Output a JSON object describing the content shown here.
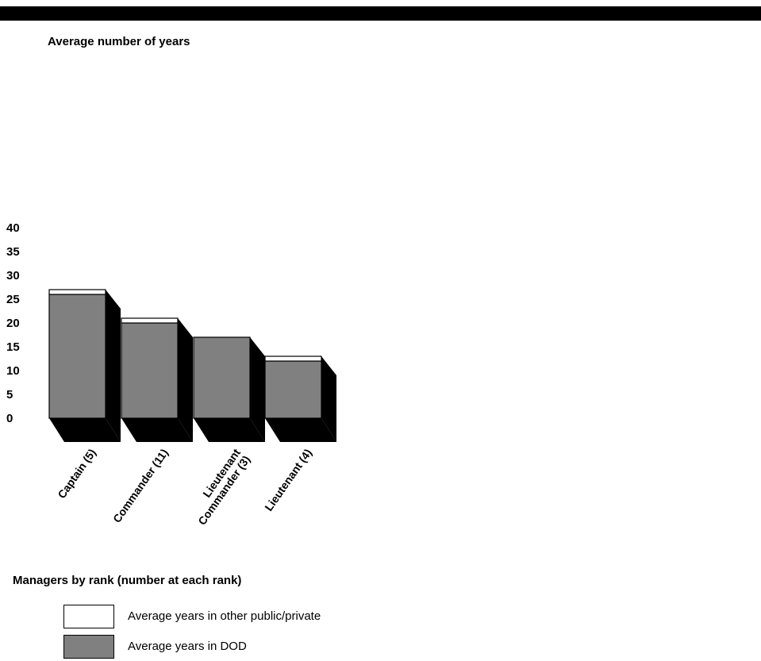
{
  "chart_data": {
    "type": "bar",
    "stacked": true,
    "ylabel": "Average number of years",
    "xlabel": "Managers by rank (number at each rank)",
    "ylim": [
      0,
      40
    ],
    "yticks": [
      0,
      5,
      10,
      15,
      20,
      25,
      30,
      35,
      40
    ],
    "categories": [
      [
        "Captain (5)"
      ],
      [
        "Commander (11)"
      ],
      [
        "Lieutenant",
        "Commander (3)"
      ],
      [
        "Lieutenant (4)"
      ]
    ],
    "series": [
      {
        "name": "Average years in DOD",
        "color": "#808080",
        "values": [
          26,
          20,
          17,
          12
        ]
      },
      {
        "name": "Average years in other public/private",
        "color": "#ffffff",
        "values": [
          1,
          1,
          0,
          1
        ]
      }
    ],
    "grid": false,
    "legend_position": "bottom-left"
  }
}
